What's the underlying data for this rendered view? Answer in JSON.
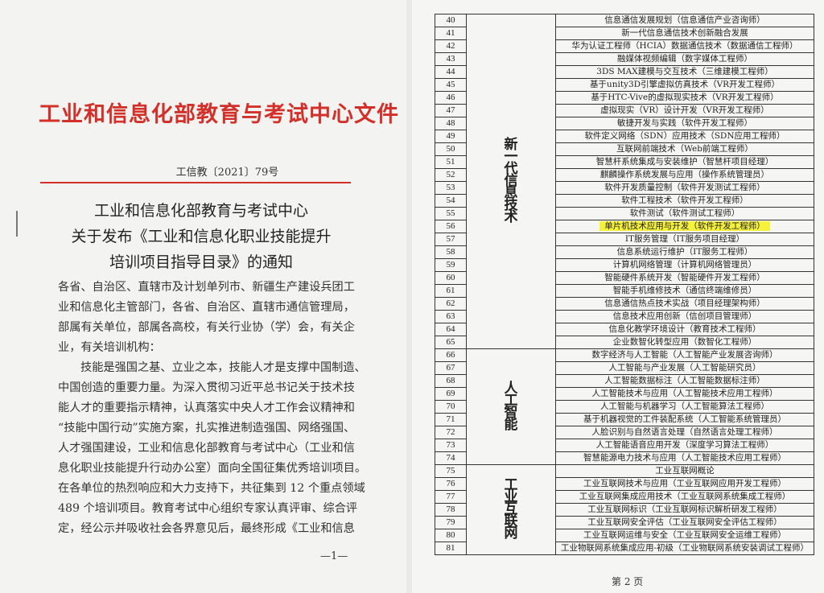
{
  "left_page": {
    "title": "工业和信息化部教育与考试中心文件",
    "doc_number": "工信教〔2021〕79号",
    "headings": [
      "工业和信息化部教育与考试中心",
      "关于发布《工业和信息化职业技能提升",
      "培训项目指导目录》的通知"
    ],
    "body_lines": [
      "各省、自治区、直辖市及计划单列市、新疆生产建设兵团工",
      "业和信息化主管部门，各省、自治区、直辖市通信管理局，",
      "部属有关单位，部属各高校，有关行业协（学）会，有关企",
      "业，有关培训机构：",
      "技能是强国之基、立业之本，技能人才是支撑中国制造、",
      "中国创造的重要力量。为深入贯彻习近平总书记关于技术技",
      "能人才的重要指示精神，认真落实中央人才工作会议精神和",
      "“技能中国行动”实施方案，扎实推进制造强国、网络强国、",
      "人才强国建设，工业和信息化部教育与考试中心（工业和信",
      "息化职业技能提升行动办公室）面向全国征集优秀培训项目。",
      "在各单位的热烈响应和大力支持下，共征集到 12 个重点领域",
      "489 个培训项目。教育考试中心组织专家认真评审、综合评",
      "定，经公示并吸收社会各界意见后，最终形成《工业和信息"
    ],
    "page_number": "—1—"
  },
  "right_page": {
    "highlight_color": "#f6f13a",
    "categories": [
      {
        "name": "新一代信息技术",
        "rows": [
          {
            "no": "40",
            "item": "信息通信发展规划（信息通信产业咨询师）"
          },
          {
            "no": "41",
            "item": "新一代信息通信技术创新融合发展"
          },
          {
            "no": "42",
            "item": "华为认证工程师（HCIA）数据通信技术（数据通信工程师）"
          },
          {
            "no": "43",
            "item": "融媒体视频编辑（数字媒体工程师）"
          },
          {
            "no": "44",
            "item": "3DS MAX建模与交互技术（三维建模工程师）"
          },
          {
            "no": "45",
            "item": "基于unity3D引擎虚拟仿真技术（VR开发工程师）"
          },
          {
            "no": "46",
            "item": "基于HTC-Vive的虚拟现实技术（VR开发工程师）"
          },
          {
            "no": "47",
            "item": "虚拟现实（VR）设计开发（VR开发工程师）"
          },
          {
            "no": "48",
            "item": "敏捷开发与实践（软件开发工程师）"
          },
          {
            "no": "49",
            "item": "软件定义网络（SDN）应用技术（SDN应用工程师）"
          },
          {
            "no": "50",
            "item": "互联网前端技术（Web前端工程师）"
          },
          {
            "no": "51",
            "item": "智慧杆系统集成与安装维护（智慧杆项目经理）"
          },
          {
            "no": "52",
            "item": "麒麟操作系统发展与应用（操作系统管理员）"
          },
          {
            "no": "53",
            "item": "软件开发质量控制（软件开发测试工程师）"
          },
          {
            "no": "54",
            "item": "软件工程技术（软件开发工程师）"
          },
          {
            "no": "55",
            "item": "软件测试（软件测试工程师）"
          },
          {
            "no": "56",
            "item": "单片机技术应用与开发（软件开发工程师）",
            "highlighted": true
          },
          {
            "no": "57",
            "item": "IT服务管理（IT服务项目经理）"
          },
          {
            "no": "58",
            "item": "信息系统运行维护（IT服务工程师）"
          },
          {
            "no": "59",
            "item": "计算机网络管理（计算机网络管理员）"
          },
          {
            "no": "60",
            "item": "智能硬件系统开发（智能硬件开发工程师）"
          },
          {
            "no": "61",
            "item": "智能手机维修技术（通信终端维修员）"
          },
          {
            "no": "62",
            "item": "信息通信热点技术实战（项目经理架构师）"
          },
          {
            "no": "63",
            "item": "信息技术应用创新（信创项目管理师）"
          },
          {
            "no": "64",
            "item": "信息化教学环境设计（教育技术工程师）"
          },
          {
            "no": "65",
            "item": "企业数智化转型应用（数智化工程师）"
          }
        ]
      },
      {
        "name": "人工智能",
        "rows": [
          {
            "no": "66",
            "item": "数字经济与人工智能（人工智能产业发展咨询师）"
          },
          {
            "no": "67",
            "item": "人工智能与产业发展（人工智能研究员）"
          },
          {
            "no": "68",
            "item": "人工智能数据标注（人工智能数据标注师）"
          },
          {
            "no": "69",
            "item": "人工智能技术与应用（人工智能技术应用工程师）"
          },
          {
            "no": "70",
            "item": "人工智能与机器学习（人工智能算法工程师）"
          },
          {
            "no": "71",
            "item": "基于机器视觉的工件装配系统（人工智能系统管理员）"
          },
          {
            "no": "72",
            "item": "人脸识别与自然语言处理（自然语言处理工程师）"
          },
          {
            "no": "73",
            "item": "人工智能语音应用开发（深度学习算法工程师）"
          },
          {
            "no": "74",
            "item": "智慧能源电力技术与应用（人工智能技术应用工程师）"
          }
        ]
      },
      {
        "name": "工业互联网",
        "rows": [
          {
            "no": "75",
            "item": "工业互联网概论"
          },
          {
            "no": "76",
            "item": "工业互联网技术与应用（工业互联网应用开发工程师）"
          },
          {
            "no": "77",
            "item": "工业互联网集成应用技术（工业互联网系统集成工程师）"
          },
          {
            "no": "78",
            "item": "工业互联网标识（工业互联网标识解析研发工程师）"
          },
          {
            "no": "79",
            "item": "工业互联网安全评估（工业互联网安全评估工程师）"
          },
          {
            "no": "80",
            "item": "工业互联网运维与安全（工业互联网安全运维工程师）"
          },
          {
            "no": "81",
            "item": "工业物联网系统集成应用-初级（工业物联网系统安装调试工程师）"
          }
        ]
      }
    ],
    "page_number": "第 2 页"
  }
}
